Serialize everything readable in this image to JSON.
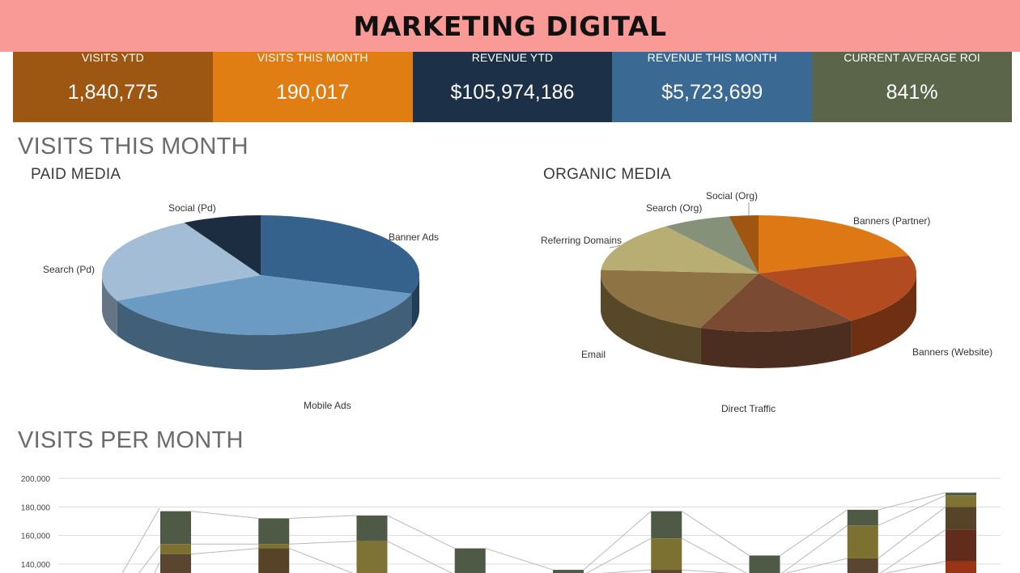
{
  "header": {
    "title": "MARKETING DIGITAL"
  },
  "kpis": [
    {
      "label": "VISITS YTD",
      "value": "1,840,775",
      "color": "#9e5713"
    },
    {
      "label": "VISITS THIS MONTH",
      "value": "190,017",
      "color": "#e07d13"
    },
    {
      "label": "REVENUE YTD",
      "value": "$105,974,186",
      "color": "#1c3047"
    },
    {
      "label": "REVENUE THIS MONTH",
      "value": "$5,723,699",
      "color": "#3a6a93"
    },
    {
      "label": "CURRENT AVERAGE ROI",
      "value": "841%",
      "color": "#5a6549"
    }
  ],
  "sections": {
    "visits_this_month": "VISITS THIS MONTH",
    "paid_media": "PAID MEDIA",
    "organic_media": "ORGANIC MEDIA",
    "visits_per_month": "VISITS PER MONTH"
  },
  "chart_data": [
    {
      "type": "pie",
      "title": "PAID MEDIA",
      "three_d": true,
      "slices": [
        {
          "label": "Banner Ads",
          "value": 30,
          "color": "#35628c"
        },
        {
          "label": "Mobile Ads",
          "value": 38,
          "color": "#6b9ac2"
        },
        {
          "label": "Search (Pd)",
          "value": 24,
          "color": "#a3bdd6"
        },
        {
          "label": "Social (Pd)",
          "value": 8,
          "color": "#1c2d42"
        }
      ]
    },
    {
      "type": "pie",
      "title": "ORGANIC MEDIA",
      "three_d": true,
      "slices": [
        {
          "label": "Banners (Partner)",
          "value": 20,
          "color": "#de7814"
        },
        {
          "label": "Banners (Website)",
          "value": 20,
          "color": "#b24b1f"
        },
        {
          "label": "Direct Traffic",
          "value": 16,
          "color": "#7a4a33"
        },
        {
          "label": "Email",
          "value": 20,
          "color": "#8e7444"
        },
        {
          "label": "Referring Domains",
          "value": 14,
          "color": "#b8ad73"
        },
        {
          "label": "Search (Org)",
          "value": 7,
          "color": "#86917a"
        },
        {
          "label": "Social (Org)",
          "value": 3,
          "color": "#a05510"
        }
      ]
    },
    {
      "type": "bar",
      "stacked": true,
      "title": "VISITS PER MONTH",
      "yticks": [
        "200,000",
        "180,000",
        "160,000",
        "140,000"
      ],
      "y_visible_range": [
        133000,
        200000
      ],
      "grid": true,
      "bars": [
        {
          "segments": [
            {
              "top": 177000,
              "color": "#4e5a45"
            },
            {
              "top": 154000,
              "color": "#7c7131"
            },
            {
              "top": 147000,
              "color": "#5a4630"
            }
          ]
        },
        {
          "segments": [
            {
              "top": 172000,
              "color": "#4e5a45"
            },
            {
              "top": 154000,
              "color": "#7c7131"
            },
            {
              "top": 151000,
              "color": "#574328"
            }
          ]
        },
        {
          "segments": [
            {
              "top": 174000,
              "color": "#4e5a45"
            },
            {
              "top": 156000,
              "color": "#7f7235"
            }
          ]
        },
        {
          "segments": [
            {
              "top": 151000,
              "color": "#4e5a45"
            }
          ]
        },
        {
          "segments": [
            {
              "top": 136000,
              "color": "#4e5a45"
            }
          ]
        },
        {
          "segments": [
            {
              "top": 177000,
              "color": "#4e5a45"
            },
            {
              "top": 158000,
              "color": "#7c7131"
            },
            {
              "top": 136000,
              "color": "#5a4630"
            }
          ]
        },
        {
          "segments": [
            {
              "top": 146000,
              "color": "#4e5a45"
            }
          ]
        },
        {
          "segments": [
            {
              "top": 178000,
              "color": "#4e5a45"
            },
            {
              "top": 167000,
              "color": "#7c7131"
            },
            {
              "top": 144000,
              "color": "#5a4630"
            }
          ]
        },
        {
          "segments": [
            {
              "top": 190000,
              "color": "#4e5a45"
            },
            {
              "top": 188000,
              "color": "#7f7235"
            },
            {
              "top": 180000,
              "color": "#574328"
            },
            {
              "top": 164000,
              "color": "#612c1b"
            },
            {
              "top": 142000,
              "color": "#9a3416"
            }
          ]
        }
      ]
    }
  ]
}
